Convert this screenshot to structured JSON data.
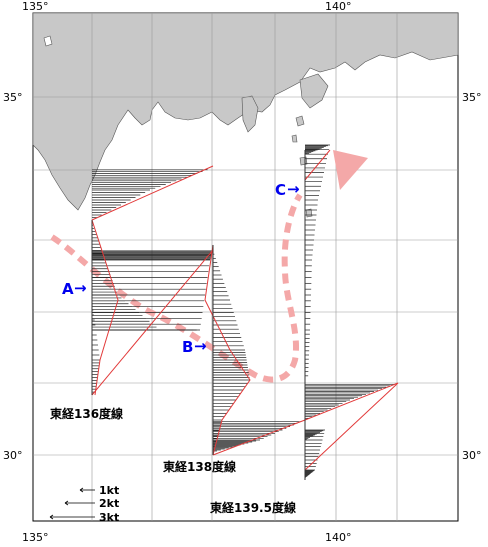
{
  "map": {
    "lon_range": [
      135,
      142
    ],
    "lat_range": [
      29.8,
      37.5
    ],
    "axis_labels": {
      "top": [
        "135°",
        "140°"
      ],
      "bottom": [
        "135°",
        "140°"
      ],
      "left": [
        "35°",
        "30°"
      ],
      "right": [
        "35°",
        "30°"
      ]
    },
    "land_color": "#c8c8c8",
    "grid_color": "#999999",
    "current_path_color": "#f4a8a8",
    "section_line_color": "#e23a3a",
    "marker_color": "#0000ee"
  },
  "markers": [
    {
      "label": "A",
      "arrow": "→"
    },
    {
      "label": "B",
      "arrow": "→"
    },
    {
      "label": "C",
      "arrow": "→"
    }
  ],
  "section_labels": [
    {
      "text": "東経136度線"
    },
    {
      "text": "東経138度線"
    },
    {
      "text": "東経139.5度線"
    }
  ],
  "scale_legend": [
    {
      "label": "1kt"
    },
    {
      "label": "2kt"
    },
    {
      "label": "3kt"
    }
  ]
}
